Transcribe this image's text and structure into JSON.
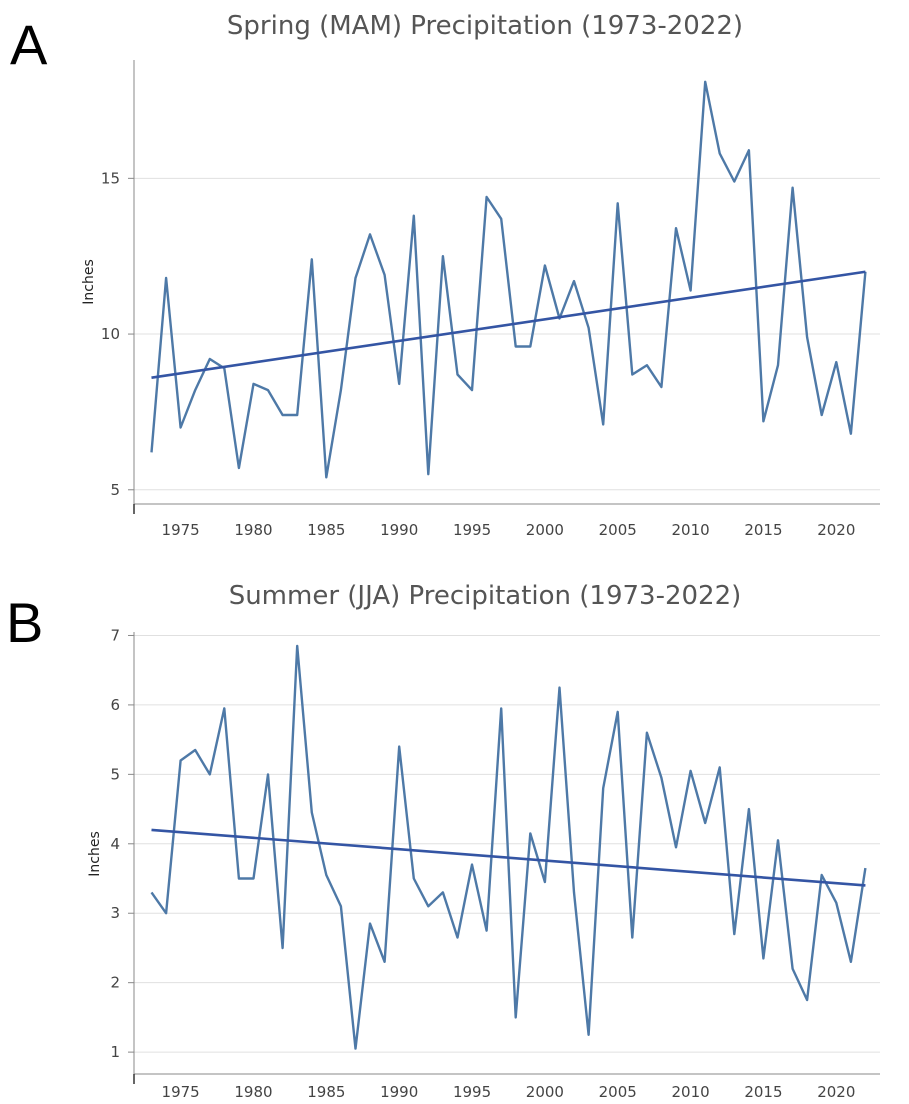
{
  "chart_data": [
    {
      "panel_label": "A",
      "type": "line",
      "title": "Spring (MAM)  Precipitation (1973-2022)",
      "ylabel": "Inches",
      "xlabel": "",
      "xlim": [
        1971.8,
        2023
      ],
      "ylim": [
        4.8,
        18.8
      ],
      "y_ticks": [
        5,
        10,
        15
      ],
      "x_ticks": [
        1975,
        1980,
        1985,
        1990,
        1995,
        2000,
        2005,
        2010,
        2015,
        2020
      ],
      "grid": true,
      "x": [
        1973,
        1974,
        1975,
        1976,
        1977,
        1978,
        1979,
        1980,
        1981,
        1982,
        1983,
        1984,
        1985,
        1986,
        1987,
        1988,
        1989,
        1990,
        1991,
        1992,
        1993,
        1994,
        1995,
        1996,
        1997,
        1998,
        1999,
        2000,
        2001,
        2002,
        2003,
        2004,
        2005,
        2006,
        2007,
        2008,
        2009,
        2010,
        2011,
        2012,
        2013,
        2014,
        2015,
        2016,
        2017,
        2018,
        2019,
        2020,
        2021,
        2022
      ],
      "series": [
        {
          "values": [
            6.2,
            11.8,
            7.0,
            8.2,
            9.2,
            8.9,
            5.7,
            8.4,
            8.2,
            7.4,
            7.4,
            12.4,
            5.4,
            8.2,
            11.8,
            13.2,
            11.9,
            8.4,
            13.8,
            5.5,
            12.5,
            8.7,
            8.2,
            14.4,
            13.7,
            9.6,
            9.6,
            12.2,
            10.5,
            11.7,
            10.2,
            7.1,
            14.2,
            8.7,
            9.0,
            8.3,
            13.4,
            11.4,
            18.1,
            15.8,
            14.9,
            15.9,
            7.2,
            9.0,
            14.7,
            9.9,
            7.4,
            9.1,
            6.8,
            12.0
          ]
        }
      ],
      "trend": {
        "x": [
          1973,
          2022
        ],
        "y": [
          8.6,
          12.0
        ]
      },
      "colors": {
        "series": "#4e79a7",
        "trend": "#3455a4",
        "grid": "#e0e0e0",
        "axis": "#888888"
      }
    },
    {
      "panel_label": "B",
      "type": "line",
      "title": "Summer (JJA)  Precipitation (1973-2022)",
      "ylabel": "Inches",
      "xlabel": "",
      "xlim": [
        1971.8,
        2023
      ],
      "ylim": [
        0.8,
        7.05
      ],
      "y_ticks": [
        1,
        2,
        3,
        4,
        5,
        6,
        7
      ],
      "x_ticks": [
        1975,
        1980,
        1985,
        1990,
        1995,
        2000,
        2005,
        2010,
        2015,
        2020
      ],
      "grid": true,
      "x": [
        1973,
        1974,
        1975,
        1976,
        1977,
        1978,
        1979,
        1980,
        1981,
        1982,
        1983,
        1984,
        1985,
        1986,
        1987,
        1988,
        1989,
        1990,
        1991,
        1992,
        1993,
        1994,
        1995,
        1996,
        1997,
        1998,
        1999,
        2000,
        2001,
        2002,
        2003,
        2004,
        2005,
        2006,
        2007,
        2008,
        2009,
        2010,
        2011,
        2012,
        2013,
        2014,
        2015,
        2016,
        2017,
        2018,
        2019,
        2020,
        2021,
        2022
      ],
      "series": [
        {
          "values": [
            3.3,
            3.0,
            5.2,
            5.35,
            5.0,
            5.95,
            3.5,
            3.5,
            5.0,
            2.5,
            6.85,
            4.45,
            3.55,
            3.1,
            1.05,
            2.85,
            2.3,
            5.4,
            3.5,
            3.1,
            3.3,
            2.65,
            3.7,
            2.75,
            5.95,
            1.5,
            4.15,
            3.45,
            6.25,
            3.3,
            1.25,
            4.8,
            5.9,
            2.65,
            5.6,
            4.95,
            3.95,
            5.05,
            4.3,
            5.1,
            2.7,
            4.5,
            2.35,
            4.05,
            2.2,
            1.75,
            3.55,
            3.15,
            2.3,
            3.65
          ]
        }
      ],
      "trend": {
        "x": [
          1973,
          2022
        ],
        "y": [
          4.2,
          3.4
        ]
      },
      "colors": {
        "series": "#4e79a7",
        "trend": "#3455a4",
        "grid": "#e0e0e0",
        "axis": "#888888"
      }
    }
  ]
}
